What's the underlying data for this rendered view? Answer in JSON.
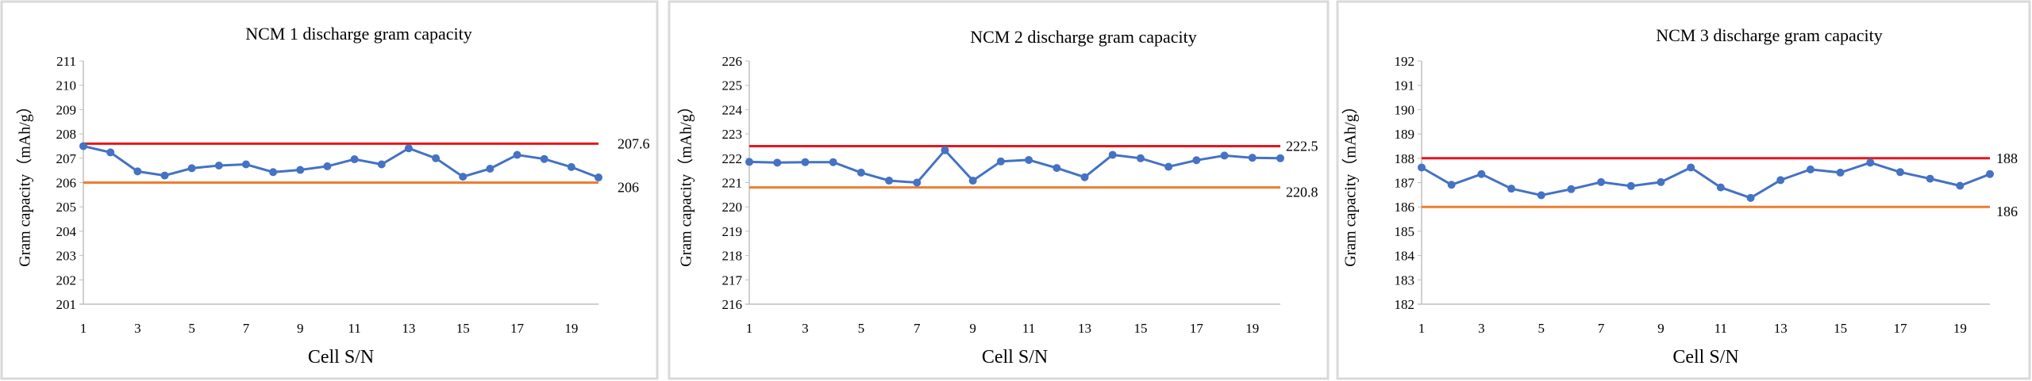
{
  "colors": {
    "series": "#4472C4",
    "upper_limit": "#E8141B",
    "lower_limit": "#ED7D31",
    "axis": "#BFBFBF",
    "panel_border": "#D9D9D9"
  },
  "chart_data": [
    {
      "type": "line",
      "title": "NCM 1 discharge gram capacity",
      "xlabel": "Cell S/N",
      "ylabel": "Gram capacity（mAh/g）",
      "ylim": [
        201,
        211
      ],
      "yticks": [
        "201",
        "202",
        "203",
        "204",
        "205",
        "206",
        "207",
        "208",
        "209",
        "210",
        "211"
      ],
      "xticks": [
        "1",
        "3",
        "5",
        "7",
        "9",
        "11",
        "13",
        "15",
        "17",
        "19"
      ],
      "x": [
        1,
        2,
        3,
        4,
        5,
        6,
        7,
        8,
        9,
        10,
        11,
        12,
        13,
        14,
        15,
        16,
        17,
        18,
        19,
        20
      ],
      "values": [
        207.5,
        207.24,
        206.46,
        206.29,
        206.59,
        206.7,
        206.75,
        206.43,
        206.52,
        206.67,
        206.96,
        206.75,
        207.41,
        207.0,
        206.24,
        206.57,
        207.14,
        206.97,
        206.64,
        206.21
      ],
      "upper_limit": {
        "value": 207.6,
        "label": "207.6"
      },
      "lower_limit": {
        "value": 206,
        "label": "206"
      },
      "grid": false
    },
    {
      "type": "line",
      "title": "NCM 2 discharge gram capacity",
      "xlabel": "Cell S/N",
      "ylabel": "Gram capacity（mAh/g）",
      "ylim": [
        216,
        226
      ],
      "yticks": [
        "216",
        "217",
        "218",
        "219",
        "220",
        "221",
        "222",
        "223",
        "224",
        "225",
        "226"
      ],
      "xticks": [
        "1",
        "3",
        "5",
        "7",
        "9",
        "11",
        "13",
        "15",
        "17",
        "19"
      ],
      "x": [
        1,
        2,
        3,
        4,
        5,
        6,
        7,
        8,
        9,
        10,
        11,
        12,
        13,
        14,
        15,
        16,
        17,
        18,
        19,
        20
      ],
      "values": [
        221.85,
        221.82,
        221.84,
        221.84,
        221.41,
        221.08,
        221.0,
        222.33,
        221.08,
        221.87,
        221.93,
        221.6,
        221.22,
        222.14,
        222.0,
        221.65,
        221.92,
        222.11,
        222.02,
        222.0
      ],
      "upper_limit": {
        "value": 222.5,
        "label": "222.5"
      },
      "lower_limit": {
        "value": 220.8,
        "label": "220.8"
      },
      "grid": false
    },
    {
      "type": "line",
      "title": "NCM 3 discharge gram capacity",
      "xlabel": "Cell S/N",
      "ylabel": "Gram capacity（mAh/g）",
      "ylim": [
        182,
        192
      ],
      "yticks": [
        "182",
        "183",
        "184",
        "185",
        "186",
        "187",
        "188",
        "189",
        "190",
        "191",
        "192"
      ],
      "xticks": [
        "1",
        "3",
        "5",
        "7",
        "9",
        "11",
        "13",
        "15",
        "17",
        "19"
      ],
      "x": [
        1,
        2,
        3,
        4,
        5,
        6,
        7,
        8,
        9,
        10,
        11,
        12,
        13,
        14,
        15,
        16,
        17,
        18,
        19,
        20
      ],
      "values": [
        187.62,
        186.91,
        187.35,
        186.75,
        186.48,
        186.73,
        187.02,
        186.86,
        187.02,
        187.62,
        186.8,
        186.37,
        187.1,
        187.54,
        187.41,
        187.82,
        187.43,
        187.16,
        186.87,
        187.35
      ],
      "upper_limit": {
        "value": 188,
        "label": "188"
      },
      "lower_limit": {
        "value": 186,
        "label": "186"
      },
      "grid": false
    }
  ]
}
